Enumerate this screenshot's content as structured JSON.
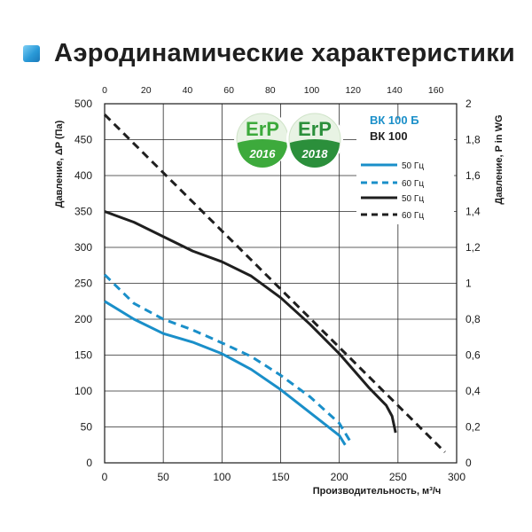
{
  "title": "Аэродинамические характеристики",
  "colors": {
    "blue": "#1a8fc9",
    "black": "#1f1f1f",
    "erp2016": "#3daa3c",
    "erp2018": "#2b8f3b",
    "accent": "#2a9ad8"
  },
  "icons": {
    "title_marker": "blue-square-icon"
  },
  "badges": [
    {
      "brand": "ErP",
      "year": "2016"
    },
    {
      "brand": "ErP",
      "year": "2018"
    }
  ],
  "chart_data": {
    "type": "line",
    "xlabel": "Производительность, м³/ч",
    "ylabel": "Давление, ΔP (Па)",
    "y2label": "Давление,  P in WG",
    "x_range": [
      0,
      300
    ],
    "y_range": [
      0,
      500
    ],
    "x_top_range": [
      0,
      170
    ],
    "y_right_range": [
      0,
      2
    ],
    "x_ticks": [
      "0",
      "50",
      "100",
      "150",
      "200",
      "250",
      "300"
    ],
    "y_ticks": [
      "0",
      "50",
      "100",
      "150",
      "200",
      "250",
      "300",
      "350",
      "400",
      "450",
      "500"
    ],
    "x_top_ticks": [
      "0",
      "20",
      "40",
      "60",
      "80",
      "100",
      "120",
      "140",
      "160"
    ],
    "y_right_ticks": [
      "0",
      "0,2",
      "0,4",
      "0,6",
      "0,8",
      "1",
      "1,2",
      "1,4",
      "1,6",
      "1,8",
      "2"
    ],
    "grid": true,
    "legend_position": "top-right",
    "legend_models": [
      {
        "label": "ВК 100 Б",
        "color": "#1a8fc9"
      },
      {
        "label": "ВК  100",
        "color": "#1f1f1f"
      }
    ],
    "series": [
      {
        "name": "50 Гц",
        "model": "ВК 100 Б",
        "color": "#1a8fc9",
        "dash": false,
        "x": [
          0,
          25,
          50,
          75,
          100,
          125,
          150,
          175,
          200,
          205
        ],
        "y": [
          225,
          200,
          180,
          168,
          152,
          130,
          102,
          70,
          38,
          25
        ]
      },
      {
        "name": "60 Гц",
        "model": "ВК 100 Б",
        "color": "#1a8fc9",
        "dash": true,
        "x": [
          0,
          25,
          50,
          75,
          100,
          125,
          150,
          175,
          200,
          210
        ],
        "y": [
          262,
          222,
          200,
          185,
          167,
          148,
          122,
          92,
          55,
          28
        ]
      },
      {
        "name": "50 Гц",
        "model": "ВК  100",
        "color": "#1f1f1f",
        "dash": false,
        "x": [
          0,
          25,
          50,
          75,
          100,
          125,
          150,
          175,
          200,
          225,
          240,
          245,
          248
        ],
        "y": [
          350,
          335,
          315,
          295,
          280,
          260,
          230,
          193,
          152,
          105,
          80,
          65,
          42
        ]
      },
      {
        "name": "60 Гц",
        "model": "ВК  100",
        "color": "#1f1f1f",
        "dash": true,
        "x": [
          0,
          290
        ],
        "y": [
          485,
          15
        ]
      }
    ]
  }
}
